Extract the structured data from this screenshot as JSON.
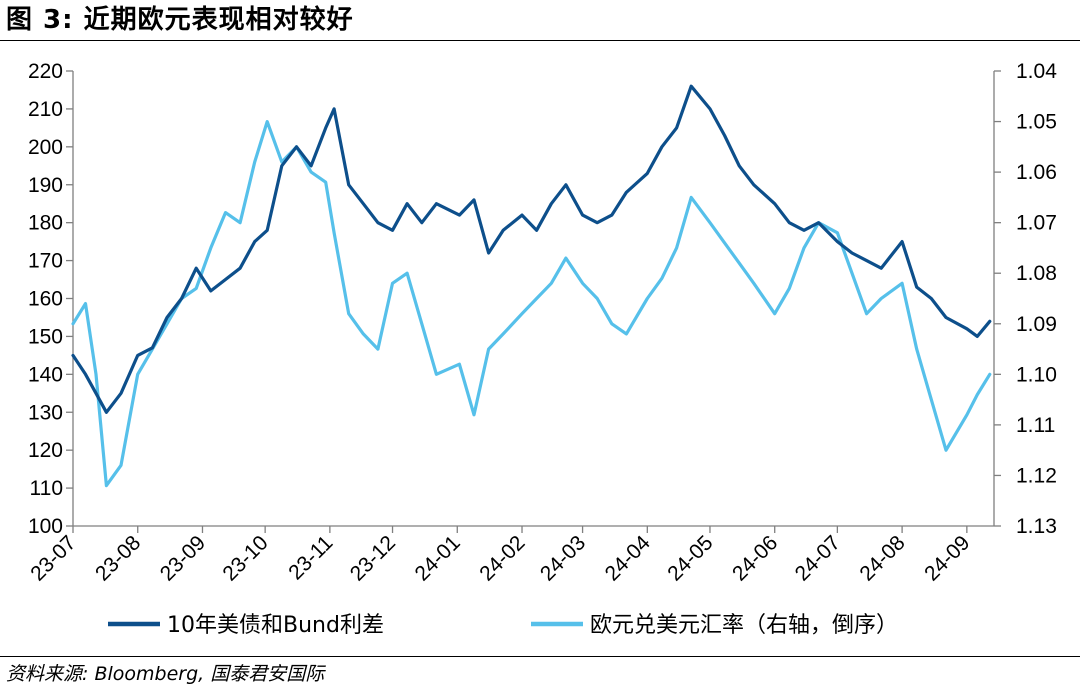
{
  "title": "图 3:  近期欧元表现相对较好",
  "source": "资料来源: Bloomberg, 国泰君安国际",
  "colors": {
    "series1": "#0d4f8b",
    "series2": "#56c0ea",
    "axis": "#7f7f7f"
  },
  "chart_data": {
    "type": "line",
    "grid": false,
    "legend_position": "bottom",
    "left_axis": {
      "ylim": [
        100,
        220
      ],
      "ticks": [
        "100",
        "110",
        "120",
        "130",
        "140",
        "150",
        "160",
        "170",
        "180",
        "190",
        "200",
        "210",
        "220"
      ]
    },
    "right_axis": {
      "ylim": [
        1.04,
        1.13
      ],
      "inverted": true,
      "ticks": [
        "1.04",
        "1.05",
        "1.06",
        "1.07",
        "1.08",
        "1.09",
        "1.10",
        "1.11",
        "1.12",
        "1.13"
      ]
    },
    "x_ticks": [
      "23-07",
      "23-08",
      "23-09",
      "23-10",
      "23-11",
      "23-12",
      "24-01",
      "24-02",
      "24-03",
      "24-04",
      "24-05",
      "24-06",
      "24-07",
      "24-08",
      "24-09"
    ],
    "series": [
      {
        "name": "10年美债和Bund利差",
        "axis": "left",
        "x": [
          "2023-07-01",
          "2023-07-07",
          "2023-07-12",
          "2023-07-17",
          "2023-07-24",
          "2023-08-01",
          "2023-08-08",
          "2023-08-15",
          "2023-08-22",
          "2023-08-29",
          "2023-09-05",
          "2023-09-12",
          "2023-09-19",
          "2023-09-26",
          "2023-10-02",
          "2023-10-09",
          "2023-10-16",
          "2023-10-23",
          "2023-10-30",
          "2023-11-03",
          "2023-11-10",
          "2023-11-17",
          "2023-11-24",
          "2023-12-01",
          "2023-12-08",
          "2023-12-15",
          "2023-12-22",
          "2024-01-02",
          "2024-01-09",
          "2024-01-16",
          "2024-01-23",
          "2024-02-01",
          "2024-02-08",
          "2024-02-15",
          "2024-02-22",
          "2024-03-01",
          "2024-03-08",
          "2024-03-15",
          "2024-03-22",
          "2024-04-01",
          "2024-04-08",
          "2024-04-15",
          "2024-04-22",
          "2024-05-01",
          "2024-05-08",
          "2024-05-15",
          "2024-05-22",
          "2024-06-01",
          "2024-06-08",
          "2024-06-15",
          "2024-06-22",
          "2024-07-01",
          "2024-07-08",
          "2024-07-15",
          "2024-07-22",
          "2024-08-01",
          "2024-08-08",
          "2024-08-15",
          "2024-08-22",
          "2024-09-01",
          "2024-09-06",
          "2024-09-12"
        ],
        "values": [
          145,
          140,
          135,
          130,
          135,
          145,
          147,
          155,
          160,
          168,
          162,
          165,
          168,
          175,
          178,
          195,
          200,
          195,
          205,
          210,
          190,
          185,
          180,
          178,
          185,
          180,
          185,
          182,
          186,
          172,
          178,
          182,
          178,
          185,
          190,
          182,
          180,
          182,
          188,
          193,
          200,
          205,
          216,
          210,
          203,
          195,
          190,
          185,
          180,
          178,
          180,
          175,
          172,
          170,
          168,
          175,
          163,
          160,
          155,
          152,
          150,
          154
        ]
      },
      {
        "name": "欧元兑美元汇率（右轴，倒序）",
        "axis": "right",
        "x": [
          "2023-07-01",
          "2023-07-07",
          "2023-07-12",
          "2023-07-17",
          "2023-07-24",
          "2023-08-01",
          "2023-08-08",
          "2023-08-15",
          "2023-08-22",
          "2023-08-29",
          "2023-09-05",
          "2023-09-12",
          "2023-09-19",
          "2023-09-26",
          "2023-10-02",
          "2023-10-09",
          "2023-10-16",
          "2023-10-23",
          "2023-10-30",
          "2023-11-03",
          "2023-11-10",
          "2023-11-17",
          "2023-11-24",
          "2023-12-01",
          "2023-12-08",
          "2023-12-15",
          "2023-12-22",
          "2024-01-02",
          "2024-01-09",
          "2024-01-16",
          "2024-01-23",
          "2024-02-01",
          "2024-02-08",
          "2024-02-15",
          "2024-02-22",
          "2024-03-01",
          "2024-03-08",
          "2024-03-15",
          "2024-03-22",
          "2024-04-01",
          "2024-04-08",
          "2024-04-15",
          "2024-04-22",
          "2024-05-01",
          "2024-05-08",
          "2024-05-15",
          "2024-05-22",
          "2024-06-01",
          "2024-06-08",
          "2024-06-15",
          "2024-06-22",
          "2024-07-01",
          "2024-07-08",
          "2024-07-15",
          "2024-07-22",
          "2024-08-01",
          "2024-08-08",
          "2024-08-15",
          "2024-08-22",
          "2024-09-01",
          "2024-09-06",
          "2024-09-12"
        ],
        "values": [
          1.09,
          1.086,
          1.1,
          1.122,
          1.118,
          1.1,
          1.095,
          1.09,
          1.085,
          1.083,
          1.075,
          1.068,
          1.07,
          1.058,
          1.05,
          1.058,
          1.055,
          1.06,
          1.062,
          1.072,
          1.088,
          1.092,
          1.095,
          1.082,
          1.08,
          1.09,
          1.1,
          1.098,
          1.108,
          1.095,
          1.092,
          1.088,
          1.085,
          1.082,
          1.077,
          1.082,
          1.085,
          1.09,
          1.092,
          1.085,
          1.081,
          1.075,
          1.065,
          1.07,
          1.074,
          1.078,
          1.082,
          1.088,
          1.083,
          1.075,
          1.07,
          1.072,
          1.08,
          1.088,
          1.085,
          1.082,
          1.095,
          1.105,
          1.115,
          1.108,
          1.104,
          1.1
        ]
      }
    ]
  }
}
